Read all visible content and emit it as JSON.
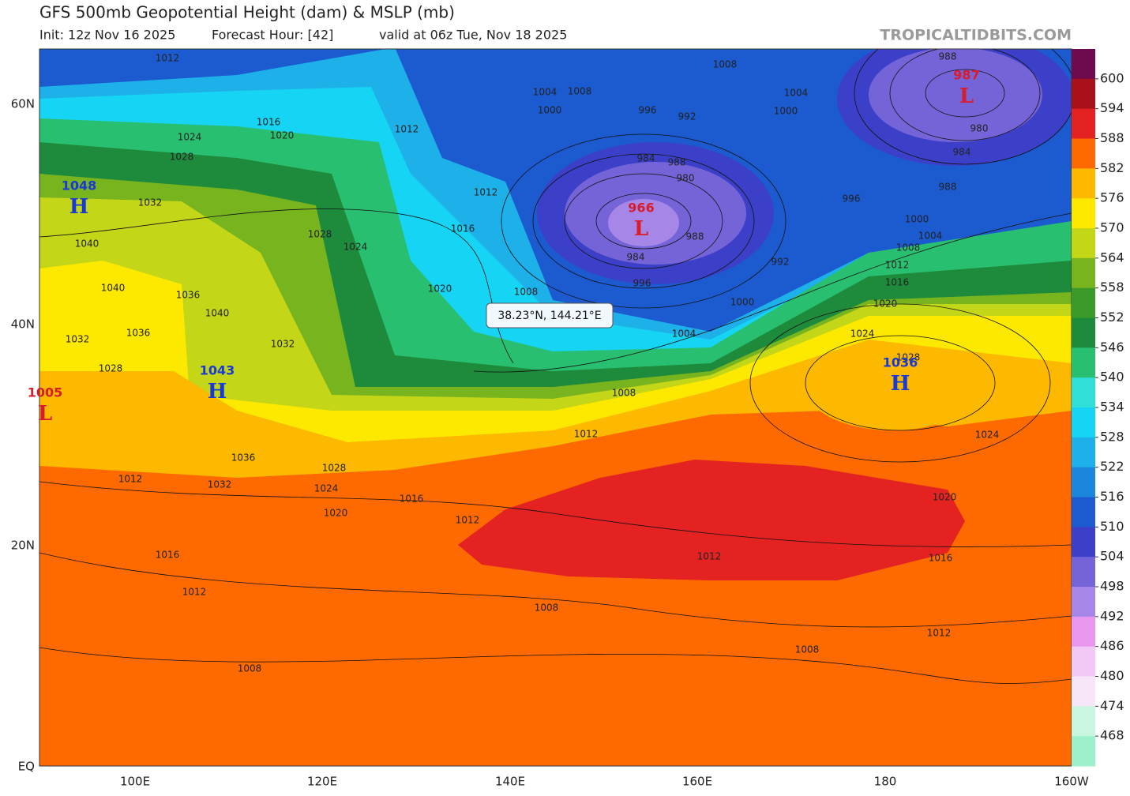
{
  "header": {
    "title": "GFS 500mb Geopotential Height (dam) & MSLP (mb)",
    "init": "Init: 12z Nov 16 2025",
    "forecast_hour": "Forecast Hour: [42]",
    "valid": "valid at 06z Tue, Nov 18 2025",
    "brand": "TROPICALTIDBITS.COM"
  },
  "map": {
    "lat_labels": [
      "60N",
      "40N",
      "20N",
      "EQ"
    ],
    "lon_labels": [
      "100E",
      "120E",
      "140E",
      "160E",
      "180",
      "160W"
    ],
    "tooltip": "38.23°N, 144.21°E",
    "centers": [
      {
        "value": "1048",
        "letter": "H",
        "color": "#1838d8"
      },
      {
        "value": "1043",
        "letter": "H",
        "color": "#1838d8"
      },
      {
        "value": "1005",
        "letter": "L",
        "color": "#d81c2c"
      },
      {
        "value": "966",
        "letter": "L",
        "color": "#d81c2c"
      },
      {
        "value": "987",
        "letter": "L",
        "color": "#d81c2c"
      },
      {
        "value": "1036",
        "letter": "H",
        "color": "#1838d8"
      }
    ],
    "isobar_labels": [
      "1012",
      "1008",
      "988",
      "1004",
      "1008",
      "1000",
      "996",
      "992",
      "1004",
      "1000",
      "1016",
      "1012",
      "1024",
      "1020",
      "1028",
      "984",
      "988",
      "980",
      "980",
      "984",
      "988",
      "1012",
      "1032",
      "996",
      "1000",
      "1004",
      "1008",
      "1016",
      "1028",
      "1040",
      "1024",
      "988",
      "984",
      "992",
      "996",
      "1012",
      "1016",
      "1020",
      "1040",
      "1036",
      "1008",
      "1000",
      "1020",
      "1040",
      "1036",
      "1032",
      "1032",
      "1004",
      "1024",
      "1028",
      "1028",
      "1008",
      "1012",
      "1024",
      "1036",
      "1028",
      "1032",
      "1012",
      "1024",
      "1016",
      "1020",
      "1020",
      "1012",
      "1016",
      "1012",
      "1016",
      "1012",
      "1008",
      "1012",
      "1008",
      "1008"
    ]
  },
  "colorbar": {
    "labels": [
      "600",
      "594",
      "588",
      "582",
      "576",
      "570",
      "564",
      "558",
      "552",
      "546",
      "540",
      "534",
      "528",
      "522",
      "516",
      "510",
      "504",
      "498",
      "492",
      "486",
      "480",
      "474",
      "468"
    ],
    "colors": [
      "#6e0a4e",
      "#a8101a",
      "#e52222",
      "#ff6a00",
      "#fdb800",
      "#fde800",
      "#c4d618",
      "#78b41e",
      "#3a9a2a",
      "#1d8a3c",
      "#28c070",
      "#30e0d8",
      "#16d4f4",
      "#1eb0e8",
      "#1c86dc",
      "#1c5ad0",
      "#3c40c8",
      "#7464d8",
      "#a686e6",
      "#e896ee",
      "#f2c8f4",
      "#f6e6f8",
      "#c8f6e0",
      "#9ef0cc"
    ]
  }
}
